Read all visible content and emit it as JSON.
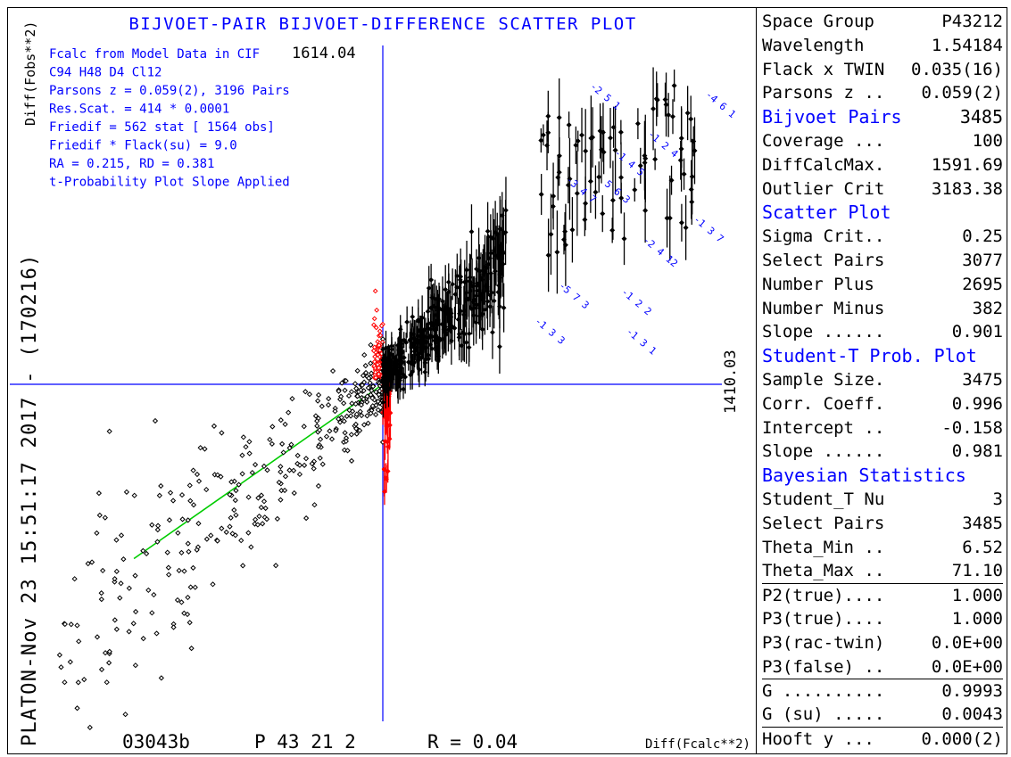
{
  "title": "BIJVOET-PAIR BIJVOET-DIFFERENCE SCATTER PLOT",
  "y_axis_label": "Diff(Fobs**2)",
  "x_axis_label": "Diff(Fcalc**2)",
  "side_label": "PLATON-Nov 23 15:51:17 2017 - (170216)",
  "footer": {
    "id": "03043b",
    "space_group": "P 43 21 2",
    "r_value": "R = 0.04"
  },
  "axis_values": {
    "y_max": "1614.04",
    "x_max": "1410.03"
  },
  "info_lines": [
    "Fcalc from Model Data in CIF",
    "C94 H48 D4 Cl12",
    "Parsons z =  0.059(2), 3196 Pairs",
    "Res.Scat. =   414 * 0.0001",
    "Friedif   =   562 stat [ 1564 obs]",
    "Friedif * Flack(su) =  9.0",
    "RA = 0.215, RD = 0.381",
    "t-Probability Plot Slope Applied"
  ],
  "panel": [
    {
      "type": "row",
      "label": "Space Group",
      "value": "P43212"
    },
    {
      "type": "row",
      "label": "Wavelength",
      "value": "1.54184"
    },
    {
      "type": "row",
      "label": "Flack x TWIN",
      "value": "0.035(16)"
    },
    {
      "type": "row",
      "label": "Parsons z ..",
      "value": "0.059(2)"
    },
    {
      "type": "section",
      "label": "Bijvoet Pairs",
      "value": "3485"
    },
    {
      "type": "row",
      "label": "Coverage ...",
      "value": "100"
    },
    {
      "type": "row",
      "label": "DiffCalcMax.",
      "value": "1591.69"
    },
    {
      "type": "row",
      "label": "Outlier Crit",
      "value": "3183.38"
    },
    {
      "type": "section",
      "label": "Scatter Plot",
      "value": ""
    },
    {
      "type": "row",
      "label": "Sigma Crit..",
      "value": "0.25"
    },
    {
      "type": "row",
      "label": "Select Pairs",
      "value": "3077"
    },
    {
      "type": "row",
      "label": "Number Plus",
      "value": "2695"
    },
    {
      "type": "row",
      "label": "Number Minus",
      "value": "382"
    },
    {
      "type": "row",
      "label": "Slope ......",
      "value": "0.901"
    },
    {
      "type": "section",
      "label": "Student-T Prob. Plot",
      "value": ""
    },
    {
      "type": "row",
      "label": "Sample Size.",
      "value": "3475"
    },
    {
      "type": "row",
      "label": "Corr. Coeff.",
      "value": "0.996"
    },
    {
      "type": "row",
      "label": "Intercept ..",
      "value": "-0.158"
    },
    {
      "type": "row",
      "label": "Slope ......",
      "value": "0.981"
    },
    {
      "type": "section",
      "label": "Bayesian Statistics",
      "value": ""
    },
    {
      "type": "row",
      "label": "Student_T Nu",
      "value": "3"
    },
    {
      "type": "row",
      "label": "Select Pairs",
      "value": "3485"
    },
    {
      "type": "row",
      "label": "Theta_Min ..",
      "value": "6.52"
    },
    {
      "type": "row",
      "label": "Theta_Max ..",
      "value": "71.10"
    },
    {
      "type": "sep",
      "label": "P2(true)....",
      "value": "1.000"
    },
    {
      "type": "row",
      "label": "P3(true)....",
      "value": "1.000"
    },
    {
      "type": "row",
      "label": "P3(rac-twin)",
      "value": "0.0E+00"
    },
    {
      "type": "row",
      "label": "P3(false) ..",
      "value": "0.0E+00"
    },
    {
      "type": "sep",
      "label": "G ..........",
      "value": "0.9993"
    },
    {
      "type": "row",
      "label": "G (su) .....",
      "value": "0.0043"
    },
    {
      "type": "sep",
      "label": "Hooft y ...",
      "value": "0.000(2)"
    }
  ],
  "chart_data": {
    "type": "scatter",
    "xlim": [
      -1410.03,
      1410.03
    ],
    "ylim": [
      -1614.04,
      1614.04
    ],
    "fit_slope": 0.901,
    "colors": {
      "plus": "#000000",
      "minus": "#ff0000",
      "axes": "#0000ff",
      "fit": "#00cc00",
      "labels": "#0000ff"
    },
    "outlier_labels": [
      {
        "text": "-4 6 1",
        "x": 1340,
        "y": 1390
      },
      {
        "text": "-2 5 1",
        "x": 860,
        "y": 1430
      },
      {
        "text": "-1 2 4",
        "x": 1100,
        "y": 1200
      },
      {
        "text": "-1 4 5",
        "x": 960,
        "y": 1110
      },
      {
        "text": "-3 4 7",
        "x": 760,
        "y": 980
      },
      {
        "text": "5 6 3",
        "x": 920,
        "y": 960
      },
      {
        "text": "-1 3 7",
        "x": 1290,
        "y": 790
      },
      {
        "text": "-2 4 12",
        "x": 1080,
        "y": 690
      },
      {
        "text": "-1 2 2",
        "x": 990,
        "y": 440
      },
      {
        "text": "-1 3 3",
        "x": 630,
        "y": 300
      },
      {
        "text": "-1 3 1",
        "x": 1010,
        "y": 250
      },
      {
        "text": "-5 7 3",
        "x": 730,
        "y": 470
      }
    ]
  }
}
